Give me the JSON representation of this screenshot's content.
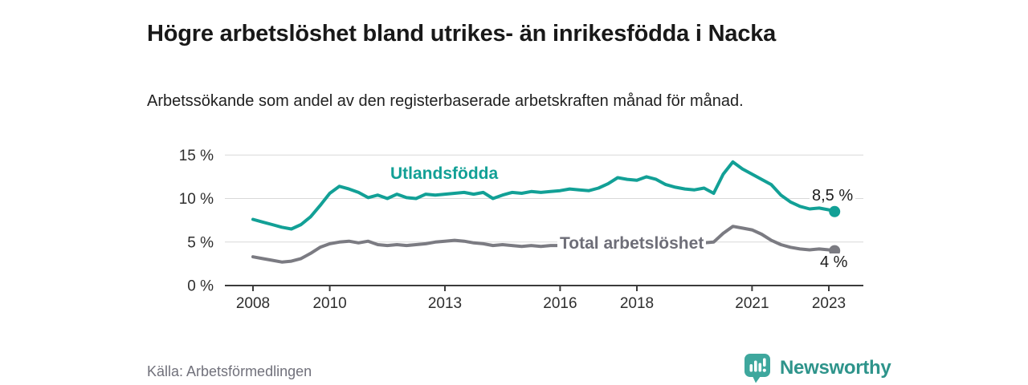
{
  "header": {
    "title": "Högre arbetslöshet bland utrikes- än inrikesfödda i Nacka",
    "subtitle": "Arbetssökande som andel av den registerbaserade arbetskraften månad för månad."
  },
  "footer": {
    "source": "Källa: Arbetsförmedlingen",
    "brand": "Newsworthy",
    "brand_icon": "bar-chart-speech-bubble-icon",
    "brand_color": "#2e948b",
    "brand_icon_color": "#3ea79d"
  },
  "chart_data": {
    "type": "line",
    "unit": "%",
    "x_range": [
      2008,
      2023.15
    ],
    "ylim": [
      0,
      16
    ],
    "grid": true,
    "legend_position": "inline-labels",
    "axis_color": "#3b3b3b",
    "grid_color": "#d9d9d9",
    "yticks": [
      {
        "value": 0,
        "label": "0 %"
      },
      {
        "value": 5,
        "label": "5 %"
      },
      {
        "value": 10,
        "label": "10 %"
      },
      {
        "value": 15,
        "label": "15 %"
      }
    ],
    "xticks": [
      {
        "value": 2008,
        "label": "2008"
      },
      {
        "value": 2010,
        "label": "2010"
      },
      {
        "value": 2013,
        "label": "2013"
      },
      {
        "value": 2016,
        "label": "2016"
      },
      {
        "value": 2018,
        "label": "2018"
      },
      {
        "value": 2021,
        "label": "2021"
      },
      {
        "value": 2023,
        "label": "2023"
      }
    ],
    "series": [
      {
        "id": "utlandsfodda",
        "name": "Utlandsfödda",
        "color": "#12a096",
        "end_label": "8,5 %",
        "end_value": 8.5,
        "points": [
          [
            2008.0,
            7.6
          ],
          [
            2008.25,
            7.3
          ],
          [
            2008.5,
            7.0
          ],
          [
            2008.75,
            6.7
          ],
          [
            2009.0,
            6.5
          ],
          [
            2009.25,
            7.0
          ],
          [
            2009.5,
            7.9
          ],
          [
            2009.75,
            9.2
          ],
          [
            2010.0,
            10.6
          ],
          [
            2010.25,
            11.4
          ],
          [
            2010.5,
            11.1
          ],
          [
            2010.75,
            10.7
          ],
          [
            2011.0,
            10.1
          ],
          [
            2011.25,
            10.4
          ],
          [
            2011.5,
            10.0
          ],
          [
            2011.75,
            10.5
          ],
          [
            2012.0,
            10.1
          ],
          [
            2012.25,
            10.0
          ],
          [
            2012.5,
            10.5
          ],
          [
            2012.75,
            10.4
          ],
          [
            2013.0,
            10.5
          ],
          [
            2013.25,
            10.6
          ],
          [
            2013.5,
            10.7
          ],
          [
            2013.75,
            10.5
          ],
          [
            2014.0,
            10.7
          ],
          [
            2014.25,
            10.0
          ],
          [
            2014.5,
            10.4
          ],
          [
            2014.75,
            10.7
          ],
          [
            2015.0,
            10.6
          ],
          [
            2015.25,
            10.8
          ],
          [
            2015.5,
            10.7
          ],
          [
            2015.75,
            10.8
          ],
          [
            2016.0,
            10.9
          ],
          [
            2016.25,
            11.1
          ],
          [
            2016.5,
            11.0
          ],
          [
            2016.75,
            10.9
          ],
          [
            2017.0,
            11.2
          ],
          [
            2017.25,
            11.7
          ],
          [
            2017.5,
            12.4
          ],
          [
            2017.75,
            12.2
          ],
          [
            2018.0,
            12.1
          ],
          [
            2018.25,
            12.5
          ],
          [
            2018.5,
            12.2
          ],
          [
            2018.75,
            11.6
          ],
          [
            2019.0,
            11.3
          ],
          [
            2019.25,
            11.1
          ],
          [
            2019.5,
            11.0
          ],
          [
            2019.75,
            11.2
          ],
          [
            2020.0,
            10.6
          ],
          [
            2020.25,
            12.8
          ],
          [
            2020.5,
            14.2
          ],
          [
            2020.75,
            13.4
          ],
          [
            2021.0,
            12.8
          ],
          [
            2021.25,
            12.2
          ],
          [
            2021.5,
            11.6
          ],
          [
            2021.75,
            10.4
          ],
          [
            2022.0,
            9.6
          ],
          [
            2022.25,
            9.1
          ],
          [
            2022.5,
            8.8
          ],
          [
            2022.75,
            8.9
          ],
          [
            2023.0,
            8.7
          ],
          [
            2023.15,
            8.5
          ]
        ]
      },
      {
        "id": "total",
        "name": "Total arbetslöshet",
        "color": "#7b7b82",
        "end_label": "4 %",
        "end_value": 4.0,
        "points": [
          [
            2008.0,
            3.3
          ],
          [
            2008.25,
            3.1
          ],
          [
            2008.5,
            2.9
          ],
          [
            2008.75,
            2.7
          ],
          [
            2009.0,
            2.8
          ],
          [
            2009.25,
            3.1
          ],
          [
            2009.5,
            3.7
          ],
          [
            2009.75,
            4.4
          ],
          [
            2010.0,
            4.8
          ],
          [
            2010.25,
            5.0
          ],
          [
            2010.5,
            5.1
          ],
          [
            2010.75,
            4.9
          ],
          [
            2011.0,
            5.1
          ],
          [
            2011.25,
            4.7
          ],
          [
            2011.5,
            4.6
          ],
          [
            2011.75,
            4.7
          ],
          [
            2012.0,
            4.6
          ],
          [
            2012.25,
            4.7
          ],
          [
            2012.5,
            4.8
          ],
          [
            2012.75,
            5.0
          ],
          [
            2013.0,
            5.1
          ],
          [
            2013.25,
            5.2
          ],
          [
            2013.5,
            5.1
          ],
          [
            2013.75,
            4.9
          ],
          [
            2014.0,
            4.8
          ],
          [
            2014.25,
            4.6
          ],
          [
            2014.5,
            4.7
          ],
          [
            2014.75,
            4.6
          ],
          [
            2015.0,
            4.5
          ],
          [
            2015.25,
            4.6
          ],
          [
            2015.5,
            4.5
          ],
          [
            2015.75,
            4.6
          ],
          [
            2016.0,
            4.6
          ],
          [
            2016.25,
            4.8
          ],
          [
            2016.5,
            4.7
          ],
          [
            2016.75,
            4.6
          ],
          [
            2017.0,
            4.6
          ],
          [
            2017.25,
            4.7
          ],
          [
            2017.5,
            4.6
          ],
          [
            2017.75,
            4.7
          ],
          [
            2018.0,
            4.7
          ],
          [
            2018.25,
            4.6
          ],
          [
            2018.5,
            4.7
          ],
          [
            2018.75,
            4.8
          ],
          [
            2019.0,
            4.8
          ],
          [
            2019.25,
            4.7
          ],
          [
            2019.5,
            4.8
          ],
          [
            2019.75,
            4.9
          ],
          [
            2020.0,
            5.0
          ],
          [
            2020.25,
            6.0
          ],
          [
            2020.5,
            6.8
          ],
          [
            2020.75,
            6.6
          ],
          [
            2021.0,
            6.4
          ],
          [
            2021.25,
            5.9
          ],
          [
            2021.5,
            5.2
          ],
          [
            2021.75,
            4.7
          ],
          [
            2022.0,
            4.4
          ],
          [
            2022.25,
            4.2
          ],
          [
            2022.5,
            4.1
          ],
          [
            2022.75,
            4.2
          ],
          [
            2023.0,
            4.1
          ],
          [
            2023.15,
            4.0
          ]
        ]
      }
    ]
  }
}
